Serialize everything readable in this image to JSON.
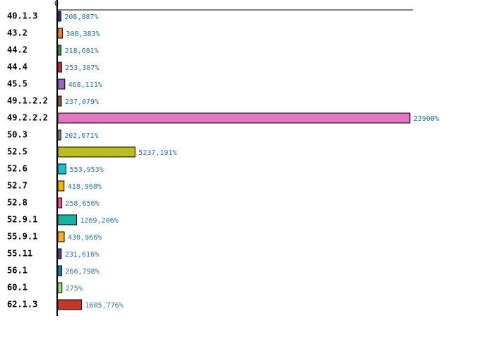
{
  "chart_data": {
    "type": "barh",
    "categories": [
      "40.1.3",
      "43.2",
      "44.2",
      "44.4",
      "45.5",
      "49.1.2.2",
      "49.2.2.2",
      "50.3",
      "52.5",
      "52.6",
      "52.7",
      "52.8",
      "52.9.1",
      "55.9.1",
      "55.11",
      "56.1",
      "60.1",
      "62.1.3"
    ],
    "values": [
      208.887,
      308.383,
      218.681,
      253.387,
      468.111,
      237.079,
      23900,
      202.671,
      5237.191,
      553.953,
      418.968,
      258.656,
      1269.206,
      430.966,
      231.616,
      266.798,
      275,
      1605.776
    ],
    "value_labels": [
      "208,887%",
      "308,383%",
      "218,681%",
      "253,387%",
      "468,111%",
      "237,079%",
      "23900%",
      "202,671%",
      "5237,191%",
      "553,953%",
      "418,968%",
      "258,656%",
      "1269,206%",
      "430,966%",
      "231,616%",
      "266,798%",
      "275%",
      "1605,776%"
    ],
    "colors": [
      "#1f3a93",
      "#ff7f0e",
      "#2ca02c",
      "#d62728",
      "#9467bd",
      "#8c564b",
      "#e377c2",
      "#7f7f7f",
      "#bcbd22",
      "#17becf",
      "#f2b705",
      "#ff4f7b",
      "#17b3a3",
      "#ffb020",
      "#5b3a8c",
      "#1f77b4",
      "#98df8a",
      "#c0392b"
    ],
    "xlim": [
      0,
      24100
    ],
    "xticks": [
      0
    ]
  }
}
